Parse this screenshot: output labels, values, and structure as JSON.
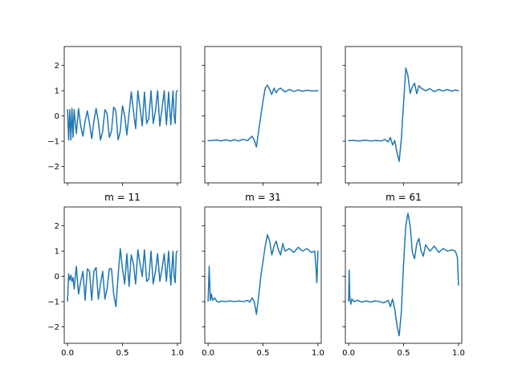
{
  "chart_data": [
    {
      "type": "line",
      "row": 0,
      "col": 0,
      "title": "",
      "xlim": [
        -0.03,
        1.03
      ],
      "ylim": [
        -2.65,
        2.75
      ],
      "yticks": [
        -2,
        -1,
        0,
        1,
        2
      ],
      "xticks": [
        0.0,
        0.5,
        1.0
      ],
      "show_xticklabels": false,
      "show_yticklabels": true,
      "series": [
        {
          "x": [
            0.0,
            0.01,
            0.02,
            0.03,
            0.04,
            0.05,
            0.06,
            0.08,
            0.1,
            0.12,
            0.14,
            0.16,
            0.18,
            0.2,
            0.22,
            0.24,
            0.26,
            0.28,
            0.3,
            0.32,
            0.34,
            0.36,
            0.38,
            0.4,
            0.42,
            0.44,
            0.46,
            0.48,
            0.5,
            0.52,
            0.54,
            0.56,
            0.58,
            0.6,
            0.62,
            0.64,
            0.66,
            0.68,
            0.7,
            0.72,
            0.74,
            0.76,
            0.78,
            0.8,
            0.82,
            0.84,
            0.86,
            0.88,
            0.9,
            0.92,
            0.94,
            0.96,
            0.97,
            0.98,
            0.99,
            1.0
          ],
          "y": [
            0.25,
            -0.95,
            0.25,
            -0.95,
            0.3,
            -0.85,
            0.25,
            -0.7,
            0.3,
            -0.4,
            -0.8,
            -0.2,
            0.2,
            -0.3,
            -0.9,
            -0.2,
            0.3,
            -0.2,
            -0.95,
            -0.6,
            0.25,
            0.1,
            -0.85,
            -0.6,
            0.35,
            0.2,
            -0.95,
            -0.6,
            0.4,
            0.0,
            -0.75,
            0.1,
            0.95,
            0.2,
            -0.5,
            1.0,
            0.3,
            -0.4,
            0.95,
            -0.3,
            -0.1,
            1.0,
            -0.3,
            0.2,
            1.0,
            -0.4,
            0.3,
            1.0,
            -0.35,
            0.95,
            -0.35,
            1.0,
            0.0,
            -0.3,
            0.95,
            1.0
          ]
        }
      ]
    },
    {
      "type": "line",
      "row": 0,
      "col": 1,
      "title": "",
      "xlim": [
        -0.03,
        1.03
      ],
      "ylim": [
        -2.65,
        2.75
      ],
      "yticks": [
        -2,
        -1,
        0,
        1,
        2
      ],
      "xticks": [
        0.0,
        0.5,
        1.0
      ],
      "show_xticklabels": false,
      "show_yticklabels": false,
      "series": [
        {
          "x": [
            0.0,
            0.04,
            0.08,
            0.12,
            0.16,
            0.2,
            0.24,
            0.28,
            0.32,
            0.36,
            0.4,
            0.42,
            0.44,
            0.46,
            0.48,
            0.5,
            0.52,
            0.54,
            0.56,
            0.58,
            0.6,
            0.62,
            0.64,
            0.66,
            0.7,
            0.74,
            0.78,
            0.82,
            0.86,
            0.9,
            0.94,
            1.0
          ],
          "y": [
            -0.98,
            -0.97,
            -0.95,
            -0.99,
            -0.94,
            -0.99,
            -0.94,
            -0.99,
            -0.92,
            -0.98,
            -0.8,
            -0.95,
            -1.23,
            -0.6,
            0.0,
            0.6,
            1.1,
            1.22,
            1.05,
            0.85,
            1.1,
            0.92,
            1.05,
            1.1,
            0.95,
            1.05,
            0.97,
            1.03,
            0.98,
            1.02,
            0.99,
            1.0
          ]
        }
      ]
    },
    {
      "type": "line",
      "row": 0,
      "col": 2,
      "title": "",
      "xlim": [
        -0.03,
        1.03
      ],
      "ylim": [
        -2.65,
        2.75
      ],
      "yticks": [
        -2,
        -1,
        0,
        1,
        2
      ],
      "xticks": [
        0.0,
        0.5,
        1.0
      ],
      "show_xticklabels": false,
      "show_yticklabels": false,
      "series": [
        {
          "x": [
            0.0,
            0.05,
            0.1,
            0.15,
            0.2,
            0.25,
            0.3,
            0.33,
            0.36,
            0.38,
            0.4,
            0.42,
            0.44,
            0.46,
            0.48,
            0.5,
            0.52,
            0.54,
            0.56,
            0.58,
            0.6,
            0.62,
            0.64,
            0.66,
            0.7,
            0.74,
            0.78,
            0.82,
            0.86,
            0.9,
            0.94,
            0.97,
            1.0
          ],
          "y": [
            -0.98,
            -0.97,
            -0.99,
            -0.96,
            -0.99,
            -0.97,
            -0.99,
            -0.93,
            -1.03,
            -0.85,
            -1.15,
            -0.98,
            -1.45,
            -1.8,
            -0.9,
            0.5,
            1.9,
            1.6,
            0.9,
            1.15,
            1.3,
            0.88,
            1.2,
            1.1,
            1.0,
            1.08,
            0.96,
            1.05,
            0.99,
            1.05,
            0.98,
            1.03,
            1.0
          ]
        }
      ]
    },
    {
      "type": "line",
      "row": 1,
      "col": 0,
      "title": "m = 11",
      "xlim": [
        -0.03,
        1.03
      ],
      "ylim": [
        -2.65,
        2.75
      ],
      "yticks": [
        -2,
        -1,
        0,
        1,
        2
      ],
      "xticks": [
        0.0,
        0.5,
        1.0
      ],
      "show_xticklabels": true,
      "show_yticklabels": true,
      "series": [
        {
          "x": [
            0.0,
            0.01,
            0.02,
            0.03,
            0.04,
            0.05,
            0.06,
            0.08,
            0.1,
            0.12,
            0.14,
            0.16,
            0.18,
            0.2,
            0.22,
            0.24,
            0.26,
            0.28,
            0.3,
            0.32,
            0.34,
            0.36,
            0.38,
            0.4,
            0.42,
            0.44,
            0.46,
            0.48,
            0.5,
            0.52,
            0.54,
            0.56,
            0.58,
            0.6,
            0.62,
            0.64,
            0.66,
            0.68,
            0.7,
            0.72,
            0.74,
            0.76,
            0.78,
            0.8,
            0.82,
            0.84,
            0.86,
            0.88,
            0.9,
            0.92,
            0.94,
            0.96,
            0.97,
            0.98,
            0.99,
            1.0
          ],
          "y": [
            -0.98,
            0.1,
            -0.15,
            0.05,
            -0.2,
            -0.05,
            -0.5,
            0.4,
            -0.7,
            -0.2,
            0.2,
            -0.95,
            0.3,
            0.2,
            -0.95,
            0.2,
            0.35,
            -0.9,
            -0.3,
            0.2,
            -0.9,
            -0.5,
            0.3,
            0.3,
            -0.7,
            -1.2,
            0.0,
            1.1,
            0.3,
            -0.3,
            0.9,
            -0.4,
            0.85,
            0.5,
            -0.3,
            1.05,
            0.5,
            0.0,
            1.05,
            -0.2,
            -0.1,
            1.0,
            -0.3,
            0.2,
            0.9,
            -0.2,
            0.3,
            0.9,
            -0.2,
            1.0,
            -0.35,
            1.0,
            0.0,
            -0.25,
            0.95,
            1.0
          ]
        }
      ]
    },
    {
      "type": "line",
      "row": 1,
      "col": 1,
      "title": "m = 31",
      "xlim": [
        -0.03,
        1.03
      ],
      "ylim": [
        -2.65,
        2.75
      ],
      "yticks": [
        -2,
        -1,
        0,
        1,
        2
      ],
      "xticks": [
        0.0,
        0.5,
        1.0
      ],
      "show_xticklabels": true,
      "show_yticklabels": false,
      "series": [
        {
          "x": [
            0.0,
            0.01,
            0.02,
            0.03,
            0.04,
            0.06,
            0.08,
            0.1,
            0.12,
            0.16,
            0.2,
            0.24,
            0.28,
            0.32,
            0.36,
            0.38,
            0.4,
            0.42,
            0.44,
            0.46,
            0.48,
            0.5,
            0.52,
            0.54,
            0.56,
            0.58,
            0.6,
            0.62,
            0.64,
            0.66,
            0.68,
            0.7,
            0.74,
            0.78,
            0.82,
            0.86,
            0.9,
            0.94,
            0.97,
            0.98,
            0.99,
            1.0
          ],
          "y": [
            -0.98,
            0.4,
            -0.95,
            -0.7,
            -0.95,
            -0.85,
            -1.0,
            -1.02,
            -0.98,
            -1.0,
            -0.97,
            -1.0,
            -0.97,
            -1.0,
            -0.95,
            -1.02,
            -0.85,
            -1.0,
            -1.5,
            -0.8,
            0.0,
            0.6,
            1.2,
            1.65,
            1.4,
            0.85,
            1.2,
            1.4,
            1.05,
            0.85,
            1.3,
            1.0,
            1.1,
            0.95,
            1.15,
            1.0,
            1.1,
            0.95,
            1.0,
            0.5,
            -0.25,
            1.0
          ]
        }
      ]
    },
    {
      "type": "line",
      "row": 1,
      "col": 2,
      "title": "m = 61",
      "xlim": [
        -0.03,
        1.03
      ],
      "ylim": [
        -2.65,
        2.75
      ],
      "yticks": [
        -2,
        -1,
        0,
        1,
        2
      ],
      "xticks": [
        0.0,
        0.5,
        1.0
      ],
      "show_xticklabels": true,
      "show_yticklabels": false,
      "series": [
        {
          "x": [
            0.0,
            0.005,
            0.01,
            0.02,
            0.03,
            0.05,
            0.08,
            0.12,
            0.16,
            0.2,
            0.24,
            0.28,
            0.32,
            0.36,
            0.38,
            0.4,
            0.42,
            0.44,
            0.46,
            0.48,
            0.5,
            0.52,
            0.54,
            0.56,
            0.58,
            0.6,
            0.62,
            0.64,
            0.66,
            0.68,
            0.7,
            0.74,
            0.78,
            0.82,
            0.86,
            0.9,
            0.94,
            0.97,
            0.98,
            0.99,
            1.0
          ],
          "y": [
            -0.98,
            0.25,
            -0.8,
            -1.1,
            -0.9,
            -1.0,
            -0.95,
            -1.02,
            -0.97,
            -1.02,
            -0.97,
            -1.0,
            -1.05,
            -0.95,
            -1.2,
            -0.9,
            -1.3,
            -1.95,
            -2.35,
            -1.4,
            0.5,
            2.0,
            2.5,
            2.0,
            0.95,
            0.7,
            1.3,
            1.5,
            1.0,
            0.8,
            1.25,
            1.0,
            1.2,
            0.95,
            1.1,
            1.0,
            1.05,
            1.0,
            0.9,
            0.75,
            -0.35
          ]
        }
      ]
    }
  ]
}
